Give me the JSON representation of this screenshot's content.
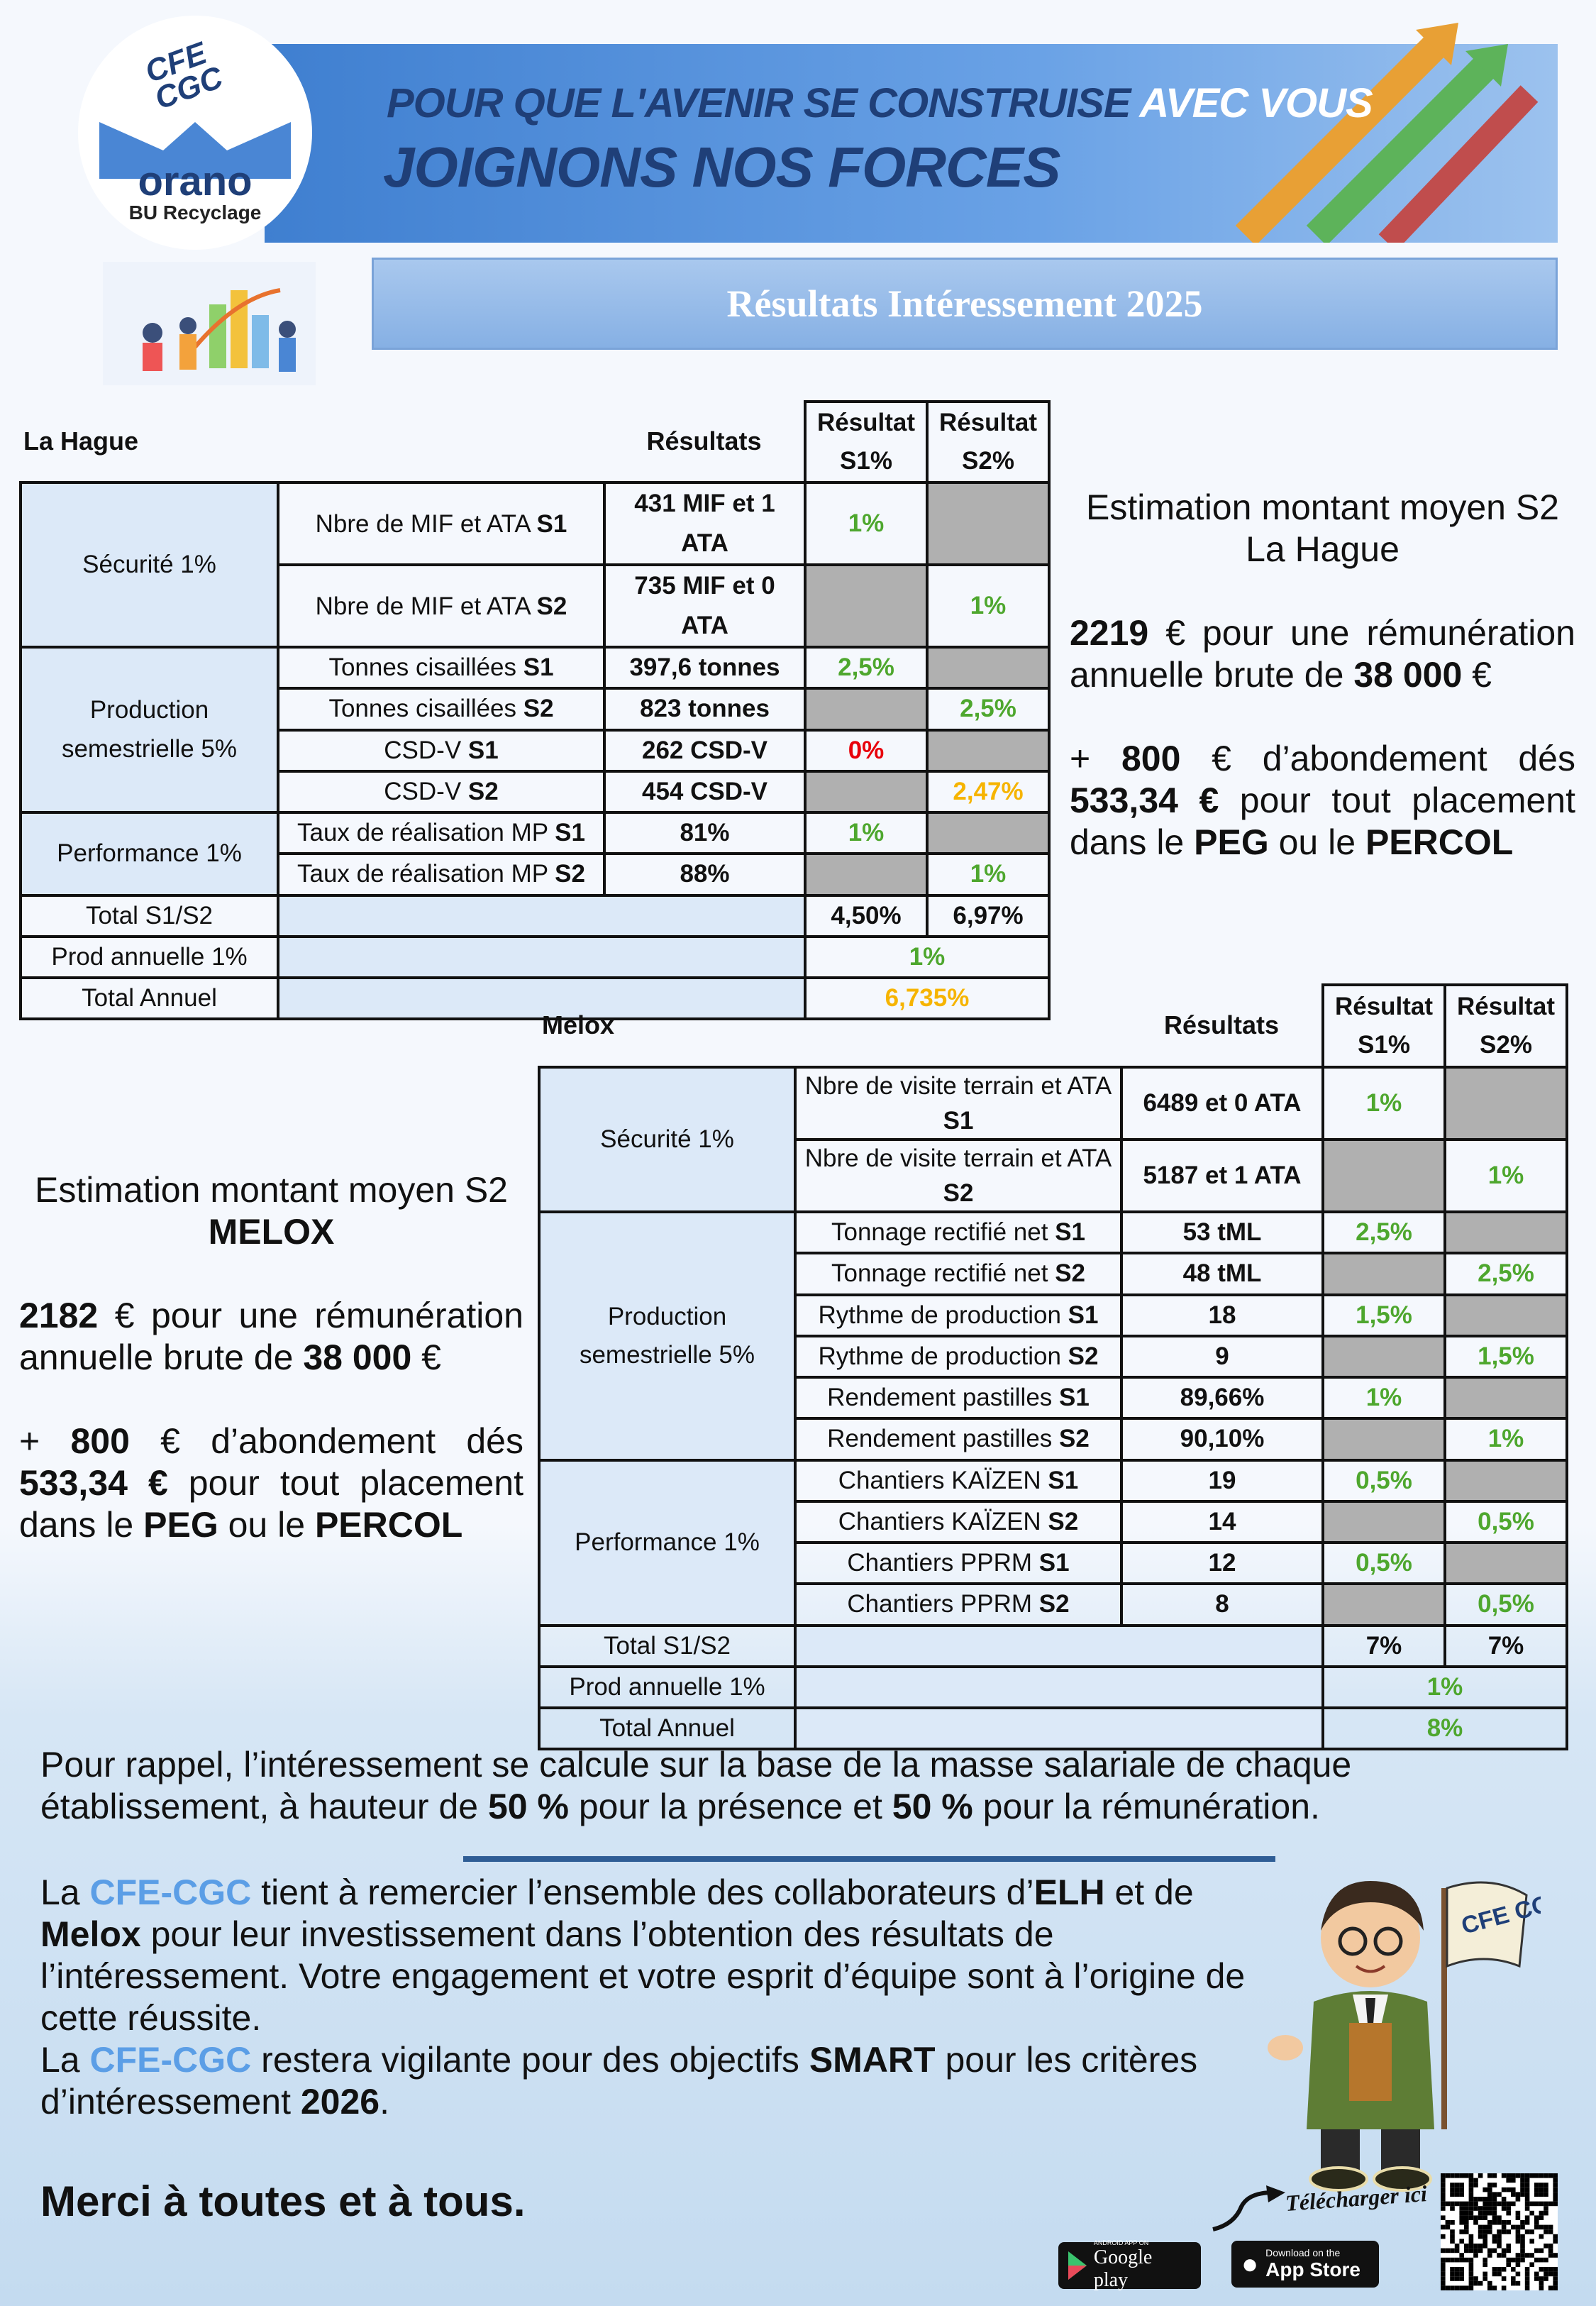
{
  "header": {
    "logo": {
      "top": "CFE CGC",
      "brand": "orano",
      "sub": "BU Recyclage"
    },
    "slogan_line1_a": "POUR QUE L'AVENIR SE CONSTRUISE ",
    "slogan_line1_b": "AVEC VOUS",
    "slogan_line2": "JOIGNONS NOS FORCES",
    "colors": {
      "banner": "#4f8ddb",
      "slogan": "#1f3f78"
    }
  },
  "title": "Résultats Intéressement 2025",
  "colors": {
    "green": "#4ea72e",
    "red": "#e8000b",
    "orange": "#f6b400",
    "gray": "#b0b0b0",
    "label_bg": "#dce9f8",
    "cfe": "#5b9ee6"
  },
  "la_hague": {
    "site": "La Hague",
    "results_header": "Résultats",
    "s1_header": "Résultat S1%",
    "s2_header": "Résultat S2%",
    "groups": [
      {
        "label": "Sécurité 1%",
        "rows": [
          {
            "criterion": "Nbre de MIF et ATA ",
            "sem": "S1",
            "result": "431 MIF et 1 ATA",
            "s1": "1%",
            "s1_color": "green",
            "s2": null
          },
          {
            "criterion": "Nbre de MIF et ATA ",
            "sem": "S2",
            "result": "735 MIF et 0 ATA",
            "s1": null,
            "s2": "1%",
            "s2_color": "green"
          }
        ]
      },
      {
        "label": "Production semestrielle 5%",
        "rows": [
          {
            "criterion": "Tonnes cisaillées ",
            "sem": "S1",
            "result": "397,6 tonnes",
            "s1": "2,5%",
            "s1_color": "green",
            "s2": null
          },
          {
            "criterion": "Tonnes cisaillées ",
            "sem": "S2",
            "result": "823 tonnes",
            "s1": null,
            "s2": "2,5%",
            "s2_color": "green"
          },
          {
            "criterion": "CSD-V ",
            "sem": "S1",
            "result": "262 CSD-V",
            "s1": "0%",
            "s1_color": "red",
            "s2": null
          },
          {
            "criterion": "CSD-V ",
            "sem": "S2",
            "result": "454 CSD-V",
            "s1": null,
            "s2": "2,47%",
            "s2_color": "orange"
          }
        ]
      },
      {
        "label": "Performance 1%",
        "rows": [
          {
            "criterion": "Taux de réalisation MP ",
            "sem": "S1",
            "result": "81%",
            "s1": "1%",
            "s1_color": "green",
            "s2": null
          },
          {
            "criterion": "Taux de réalisation MP ",
            "sem": "S2",
            "result": "88%",
            "s1": null,
            "s2": "1%",
            "s2_color": "green"
          }
        ]
      }
    ],
    "total_label": "Total S1/S2",
    "total_s1": "4,50%",
    "total_s2": "6,97%",
    "prod_label": "Prod annuelle 1%",
    "prod_value": "1%",
    "annual_label": "Total Annuel",
    "annual_value": "6,735%"
  },
  "la_hague_estimate": {
    "title1": "Estimation montant moyen S2",
    "title2": "La Hague",
    "p1": [
      {
        "t": "2219",
        "b": true
      },
      {
        "t": " € pour une rémunération annuelle brute de "
      },
      {
        "t": "38 000",
        "b": true
      },
      {
        "t": " €"
      }
    ],
    "p2": [
      {
        "t": "+ "
      },
      {
        "t": "800",
        "b": true
      },
      {
        "t": " € d’abondement dés "
      },
      {
        "t": "533,34 €",
        "b": true
      },
      {
        "t": " pour tout placement dans le "
      },
      {
        "t": "PEG",
        "b": true
      },
      {
        "t": " ou le "
      },
      {
        "t": "PERCOL",
        "b": true
      }
    ]
  },
  "melox": {
    "site": "Melox",
    "results_header": "Résultats",
    "s1_header": "Résultat S1%",
    "s2_header": "Résultat S2%",
    "groups": [
      {
        "label": "Sécurité 1%",
        "rows": [
          {
            "criterion": "Nbre de visite terrain et ATA ",
            "sem": "S1",
            "result": "6489 et 0 ATA",
            "s1": "1%",
            "s1_color": "green",
            "s2": null
          },
          {
            "criterion": "Nbre de visite terrain et ATA ",
            "sem": "S2",
            "result": "5187 et 1 ATA",
            "s1": null,
            "s2": "1%",
            "s2_color": "green"
          }
        ]
      },
      {
        "label": "Production semestrielle 5%",
        "rows": [
          {
            "criterion": "Tonnage rectifié net ",
            "sem": "S1",
            "result": "53 tML",
            "s1": "2,5%",
            "s1_color": "green",
            "s2": null
          },
          {
            "criterion": "Tonnage rectifié net ",
            "sem": "S2",
            "result": "48 tML",
            "s1": null,
            "s2": "2,5%",
            "s2_color": "green"
          },
          {
            "criterion": "Rythme de production ",
            "sem": "S1",
            "result": "18",
            "s1": "1,5%",
            "s1_color": "green",
            "s2": null
          },
          {
            "criterion": "Rythme de production ",
            "sem": "S2",
            "result": "9",
            "s1": null,
            "s2": "1,5%",
            "s2_color": "green"
          },
          {
            "criterion": "Rendement pastilles ",
            "sem": "S1",
            "result": "89,66%",
            "s1": "1%",
            "s1_color": "green",
            "s2": null
          },
          {
            "criterion": "Rendement pastilles ",
            "sem": "S2",
            "result": "90,10%",
            "s1": null,
            "s2": "1%",
            "s2_color": "green"
          }
        ]
      },
      {
        "label": "Performance 1%",
        "rows": [
          {
            "criterion": "Chantiers KAÏZEN ",
            "sem": "S1",
            "result": "19",
            "s1": "0,5%",
            "s1_color": "green",
            "s2": null
          },
          {
            "criterion": "Chantiers KAÏZEN ",
            "sem": "S2",
            "result": "14",
            "s1": null,
            "s2": "0,5%",
            "s2_color": "green"
          },
          {
            "criterion": "Chantiers PPRM ",
            "sem": "S1",
            "result": "12",
            "s1": "0,5%",
            "s1_color": "green",
            "s2": null
          },
          {
            "criterion": "Chantiers PPRM ",
            "sem": "S2",
            "result": "8",
            "s1": null,
            "s2": "0,5%",
            "s2_color": "green"
          }
        ]
      }
    ],
    "total_label": "Total S1/S2",
    "total_s1": "7%",
    "total_s2": "7%",
    "prod_label": "Prod annuelle 1%",
    "prod_value": "1%",
    "annual_label": "Total Annuel",
    "annual_value": "8%"
  },
  "melox_estimate": {
    "title1": "Estimation montant moyen S2",
    "title2": "MELOX",
    "p1": [
      {
        "t": "2182",
        "b": true
      },
      {
        "t": " € pour une rémunération annuelle brute de "
      },
      {
        "t": "38 000",
        "b": true
      },
      {
        "t": " €"
      }
    ],
    "p2": [
      {
        "t": "+ "
      },
      {
        "t": "800",
        "b": true
      },
      {
        "t": " € d’abondement dés "
      },
      {
        "t": "533,34 €",
        "b": true
      },
      {
        "t": " pour tout placement dans le "
      },
      {
        "t": "PEG",
        "b": true
      },
      {
        "t": " ou le "
      },
      {
        "t": "PERCOL",
        "b": true
      }
    ]
  },
  "reminder": [
    {
      "t": "Pour rappel, l’intéressement se calcule sur la base de la masse salariale de chaque établissement, à hauteur de "
    },
    {
      "t": "50 %",
      "b": true
    },
    {
      "t": " pour la présence et "
    },
    {
      "t": "50 %",
      "b": true
    },
    {
      "t": " pour la rémunération."
    }
  ],
  "thanks": [
    {
      "t": "La "
    },
    {
      "t": "CFE-CGC",
      "c": true
    },
    {
      "t": " tient à remercier l’ensemble des collaborateurs d’"
    },
    {
      "t": "ELH",
      "b": true
    },
    {
      "t": " et de "
    },
    {
      "t": "Melox",
      "b": true
    },
    {
      "t": " pour leur investissement dans l’obtention des résultats de l’intéressement. Votre engagement et votre esprit d’équipe sont à l’origine de cette réussite."
    }
  ],
  "vigilance": [
    {
      "t": "La "
    },
    {
      "t": "CFE-CGC",
      "c": true
    },
    {
      "t": " restera vigilante pour des objectifs "
    },
    {
      "t": "SMART",
      "b": true
    },
    {
      "t": " pour les critères d’intéressement "
    },
    {
      "t": "2026",
      "b": true
    },
    {
      "t": "."
    }
  ],
  "closing": "Merci à toutes et à tous.",
  "mascot_flag": "CFE CGC",
  "download": {
    "label": "Télécharger ici",
    "google_small": "ANDROID APP ON",
    "google": "Google play",
    "apple_small": "Download on the",
    "apple": "App Store"
  }
}
